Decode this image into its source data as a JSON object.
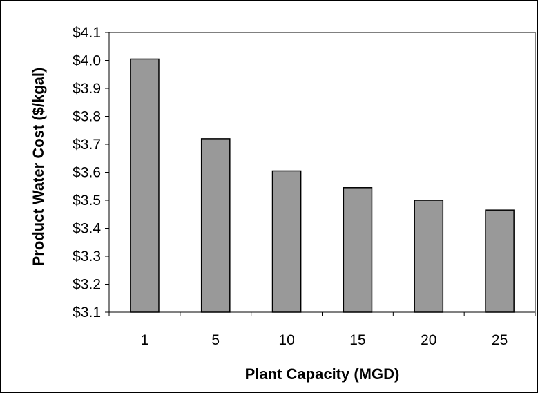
{
  "chart_data": {
    "type": "bar",
    "title": "",
    "xlabel": "Plant Capacity (MGD)",
    "ylabel": "Product Water Cost ($/kgal)",
    "categories": [
      "1",
      "5",
      "10",
      "15",
      "20",
      "25"
    ],
    "values": [
      4.005,
      3.72,
      3.605,
      3.545,
      3.5,
      3.465
    ],
    "ylim": [
      3.1,
      4.1
    ],
    "yticks": [
      {
        "value": 3.1,
        "label": "$3.1"
      },
      {
        "value": 3.2,
        "label": "$3.2"
      },
      {
        "value": 3.3,
        "label": "$3.3"
      },
      {
        "value": 3.4,
        "label": "$3.4"
      },
      {
        "value": 3.5,
        "label": "$3.5"
      },
      {
        "value": 3.6,
        "label": "$3.6"
      },
      {
        "value": 3.7,
        "label": "$3.7"
      },
      {
        "value": 3.8,
        "label": "$3.8"
      },
      {
        "value": 3.9,
        "label": "$3.9"
      },
      {
        "value": 4.0,
        "label": "$4.0"
      },
      {
        "value": 4.1,
        "label": "$4.1"
      }
    ],
    "grid": false,
    "legend": "none",
    "colors": {
      "bar_fill": "#999999",
      "bar_stroke": "#000000"
    }
  }
}
